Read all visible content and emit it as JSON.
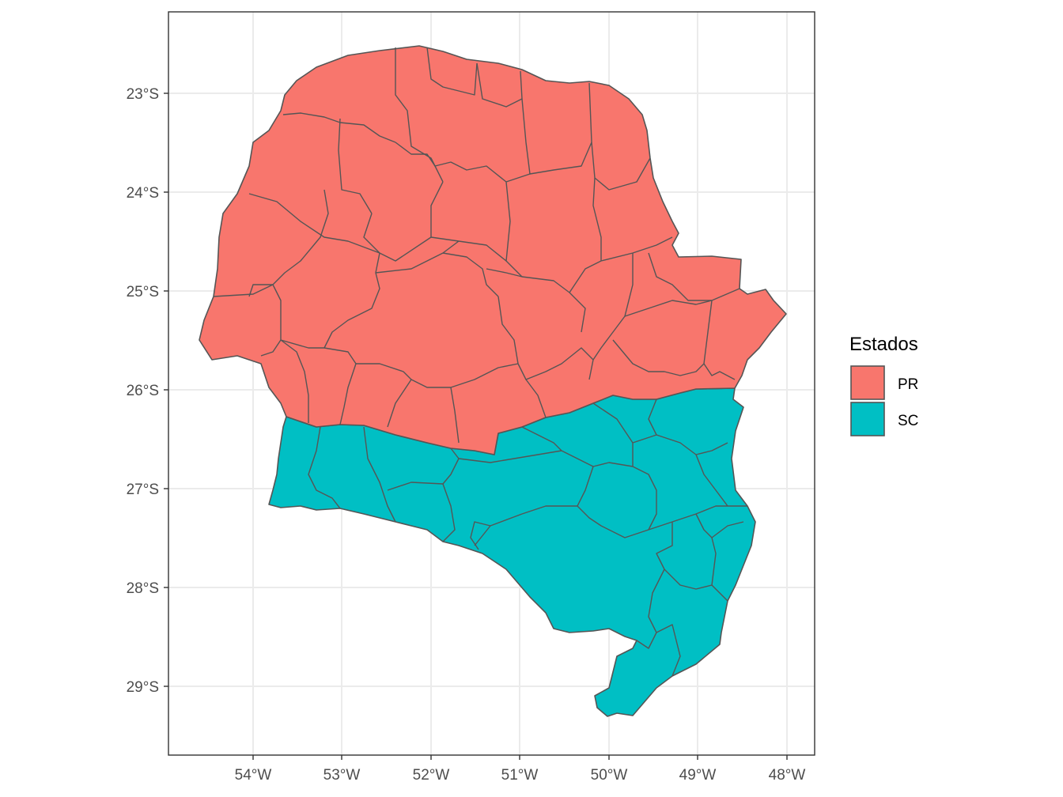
{
  "map": {
    "lon_ticks": [
      "54°W",
      "53°W",
      "52°W",
      "51°W",
      "50°W",
      "49°W",
      "48°W"
    ],
    "lat_ticks": [
      "23°S",
      "24°S",
      "25°S",
      "26°S",
      "27°S",
      "28°S",
      "29°S"
    ],
    "legend": {
      "title": "Estados",
      "items": [
        {
          "label": "PR",
          "color": "#F8766D"
        },
        {
          "label": "SC",
          "color": "#00BFC4"
        }
      ]
    },
    "colors": {
      "border": "#555555",
      "grid": "#ebebeb",
      "panel_border": "#333333"
    }
  }
}
